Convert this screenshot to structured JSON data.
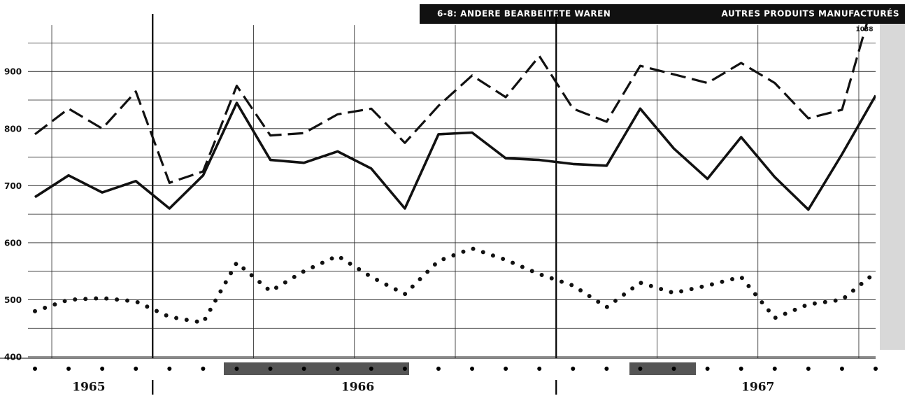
{
  "chart_data": {
    "type": "line",
    "title": "6-8: ANDERE BEARBEITETE WAREN",
    "subtitle": "AUTRES PRODUITS MANUFACTURÉS",
    "annotation": "1038",
    "year_labels": [
      "1965",
      "1966",
      "1967"
    ],
    "categories": [
      null,
      null,
      null,
      null,
      null,
      null,
      null,
      null,
      null,
      null,
      null,
      null,
      null,
      null,
      null,
      null,
      null,
      null,
      null,
      null,
      null,
      null,
      null,
      null,
      null,
      null
    ],
    "series": [
      {
        "color": "#111111",
        "style": "dashed",
        "values": [
          790,
          835,
          800,
          865,
          705,
          725,
          875,
          788,
          792,
          825,
          835,
          775,
          840,
          893,
          855,
          927,
          835,
          812,
          910,
          895,
          880,
          915,
          880,
          818,
          833,
          1038
        ]
      },
      {
        "color": "#111111",
        "style": "solid",
        "values": [
          680,
          718,
          688,
          708,
          660,
          718,
          845,
          745,
          740,
          760,
          730,
          660,
          790,
          793,
          748,
          745,
          738,
          735,
          835,
          765,
          712,
          785,
          715,
          658,
          755,
          858
        ]
      },
      {
        "color": "#111111",
        "style": "dotted",
        "values": [
          480,
          500,
          503,
          497,
          470,
          460,
          565,
          515,
          550,
          577,
          540,
          510,
          568,
          590,
          570,
          545,
          525,
          487,
          530,
          512,
          525,
          540,
          468,
          492,
          500,
          548
        ]
      }
    ],
    "ylim": [
      400,
      980
    ],
    "yticks": [
      400,
      500,
      600,
      700,
      800,
      900
    ],
    "minor_yticks": [
      450,
      550,
      650,
      750,
      850,
      950
    ],
    "grid": true
  }
}
